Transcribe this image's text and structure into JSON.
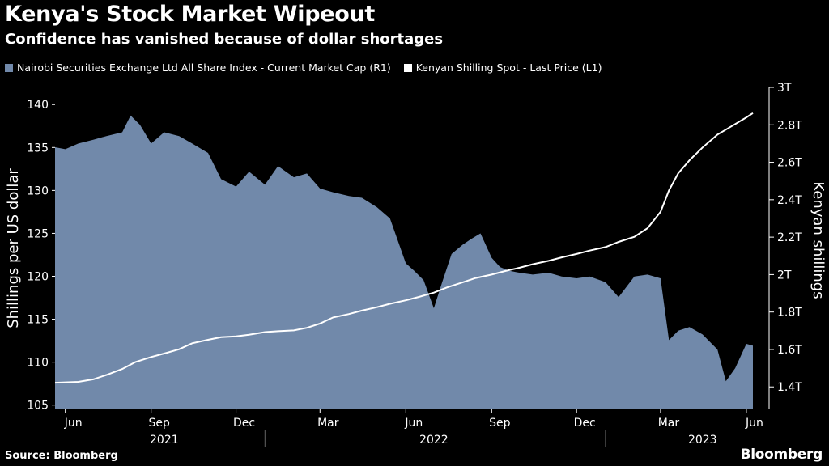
{
  "title": "Kenya's Stock Market Wipeout",
  "subtitle": "Confidence has vanished because of dollar shortages",
  "legend": [
    {
      "label": "Nairobi Securities Exchange Ltd All Share Index - Current Market Cap (R1)",
      "color": "#7189aa"
    },
    {
      "label": "Kenyan Shilling Spot - Last Price (L1)",
      "color": "#ffffff"
    }
  ],
  "source": "Source: Bloomberg",
  "brand": "Bloomberg",
  "chart_data": {
    "type": "area",
    "ylabel_left": "Shillings per US dollar",
    "ylabel_right": "Kenyan shillings",
    "y_left": {
      "range": [
        104.5,
        142.0
      ],
      "ticks": [
        105,
        110,
        115,
        120,
        125,
        130,
        135,
        140
      ]
    },
    "y_right": {
      "range": [
        1.28,
        3.0
      ],
      "ticks": [
        "1.4T",
        "1.6T",
        "1.8T",
        "2T",
        "2.2T",
        "2.4T",
        "2.6T",
        "2.8T",
        "3T"
      ],
      "tick_values": [
        1.4,
        1.6,
        1.8,
        2.0,
        2.2,
        2.4,
        2.6,
        2.8,
        3.0
      ]
    },
    "x_ticks": [
      "Jun",
      "Sep",
      "Dec",
      "Mar",
      "Jun",
      "Sep",
      "Dec",
      "Mar",
      "Jun"
    ],
    "x_tick_dates": [
      "2021-06-01",
      "2021-09-01",
      "2021-12-01",
      "2022-03-01",
      "2022-06-01",
      "2022-09-01",
      "2022-12-01",
      "2023-03-01",
      "2023-06-01"
    ],
    "year_labels": [
      {
        "label": "2021",
        "center": "2021-09-15"
      },
      {
        "label": "2022",
        "center": "2022-07-01"
      },
      {
        "label": "2023",
        "center": "2023-04-15"
      }
    ],
    "x_range": [
      "2021-05-21",
      "2023-06-08"
    ],
    "series": [
      {
        "name": "Nairobi Securities Exchange Ltd All Share Index - Current Market Cap (R1)",
        "axis": "right",
        "style": "area",
        "color": "#7189aa",
        "unit": "trillion KES",
        "x": [
          "2021-05-21",
          "2021-06-01",
          "2021-06-15",
          "2021-07-01",
          "2021-07-15",
          "2021-08-01",
          "2021-08-10",
          "2021-08-20",
          "2021-09-01",
          "2021-09-15",
          "2021-10-01",
          "2021-10-15",
          "2021-11-01",
          "2021-11-15",
          "2021-12-01",
          "2021-12-15",
          "2022-01-01",
          "2022-01-15",
          "2022-02-01",
          "2022-02-15",
          "2022-03-01",
          "2022-03-15",
          "2022-04-01",
          "2022-04-15",
          "2022-05-01",
          "2022-05-15",
          "2022-06-01",
          "2022-06-10",
          "2022-06-20",
          "2022-07-01",
          "2022-07-10",
          "2022-07-20",
          "2022-08-01",
          "2022-08-10",
          "2022-08-20",
          "2022-09-01",
          "2022-09-10",
          "2022-09-20",
          "2022-10-01",
          "2022-10-15",
          "2022-11-01",
          "2022-11-15",
          "2022-12-01",
          "2022-12-15",
          "2023-01-01",
          "2023-01-15",
          "2023-02-01",
          "2023-02-15",
          "2023-03-01",
          "2023-03-10",
          "2023-03-20",
          "2023-04-01",
          "2023-04-15",
          "2023-05-01",
          "2023-05-10",
          "2023-05-20",
          "2023-06-01",
          "2023-06-08"
        ],
        "values": [
          2.68,
          2.67,
          2.7,
          2.72,
          2.74,
          2.76,
          2.85,
          2.8,
          2.7,
          2.76,
          2.74,
          2.7,
          2.65,
          2.51,
          2.47,
          2.55,
          2.48,
          2.58,
          2.52,
          2.54,
          2.46,
          2.44,
          2.42,
          2.41,
          2.36,
          2.3,
          2.06,
          2.02,
          1.97,
          1.82,
          1.96,
          2.11,
          2.16,
          2.19,
          2.22,
          2.09,
          2.04,
          2.02,
          2.01,
          2.0,
          2.01,
          1.99,
          1.98,
          1.99,
          1.96,
          1.88,
          1.99,
          2.0,
          1.98,
          1.65,
          1.7,
          1.72,
          1.68,
          1.6,
          1.43,
          1.5,
          1.63,
          1.62
        ]
      },
      {
        "name": "Kenyan Shilling Spot - Last Price (L1)",
        "axis": "left",
        "style": "line",
        "color": "#ffffff",
        "unit": "KES per USD",
        "x": [
          "2021-05-21",
          "2021-06-15",
          "2021-07-01",
          "2021-07-15",
          "2021-08-01",
          "2021-08-15",
          "2021-09-01",
          "2021-09-15",
          "2021-10-01",
          "2021-10-15",
          "2021-11-01",
          "2021-11-15",
          "2021-12-01",
          "2021-12-15",
          "2022-01-01",
          "2022-01-15",
          "2022-02-01",
          "2022-02-15",
          "2022-03-01",
          "2022-03-15",
          "2022-04-01",
          "2022-04-15",
          "2022-05-01",
          "2022-05-15",
          "2022-06-01",
          "2022-06-15",
          "2022-07-01",
          "2022-07-15",
          "2022-08-01",
          "2022-08-15",
          "2022-09-01",
          "2022-09-15",
          "2022-10-01",
          "2022-10-15",
          "2022-11-01",
          "2022-11-15",
          "2022-12-01",
          "2022-12-15",
          "2023-01-01",
          "2023-01-15",
          "2023-02-01",
          "2023-02-15",
          "2023-03-01",
          "2023-03-10",
          "2023-03-20",
          "2023-04-01",
          "2023-04-15",
          "2023-05-01",
          "2023-05-15",
          "2023-06-01",
          "2023-06-08"
        ],
        "values": [
          107.6,
          107.7,
          108.0,
          108.5,
          109.2,
          110.0,
          110.6,
          111.0,
          111.5,
          112.2,
          112.6,
          112.9,
          113.0,
          113.2,
          113.5,
          113.6,
          113.7,
          114.0,
          114.5,
          115.2,
          115.6,
          116.0,
          116.4,
          116.8,
          117.2,
          117.6,
          118.1,
          118.7,
          119.3,
          119.8,
          120.2,
          120.6,
          121.0,
          121.4,
          121.8,
          122.2,
          122.6,
          123.0,
          123.4,
          124.0,
          124.6,
          125.6,
          127.5,
          130.0,
          132.0,
          133.5,
          135.0,
          136.5,
          137.4,
          138.5,
          139.0
        ]
      }
    ],
    "grid": false,
    "legend_position": "top-left"
  }
}
